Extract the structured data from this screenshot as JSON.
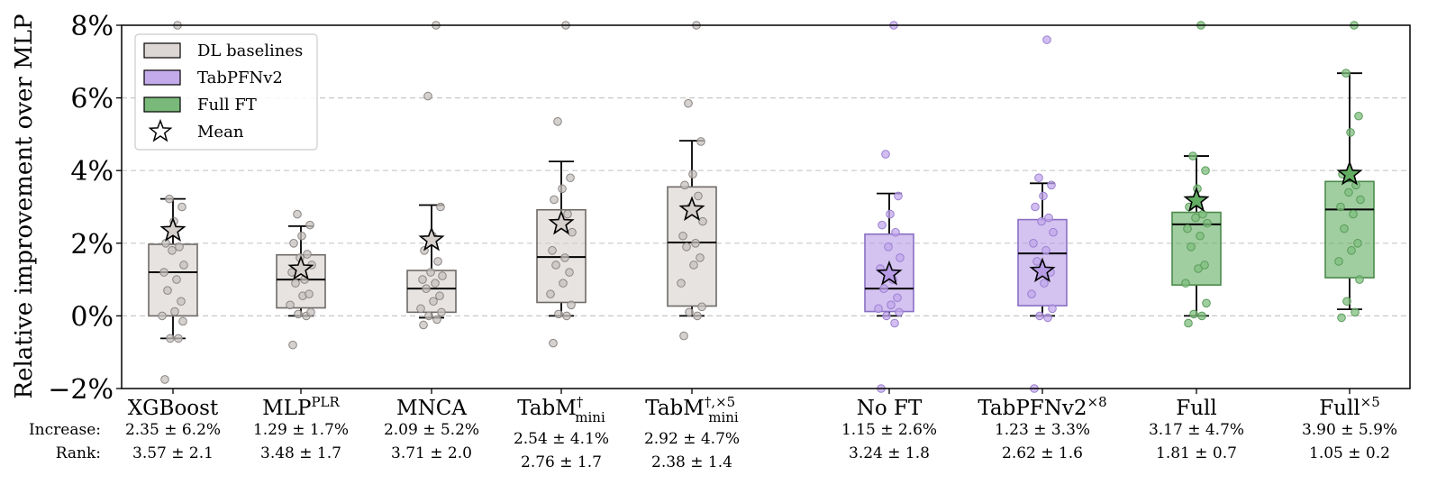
{
  "chart_data": {
    "type": "box",
    "ylabel": "Relative improvement over MLP",
    "ylim": [
      -2,
      8
    ],
    "yticks": [
      "−2%",
      "0%",
      "2%",
      "4%",
      "6%",
      "8%"
    ],
    "ytick_values": [
      -2,
      0,
      2,
      4,
      6,
      8
    ],
    "grid": "horizontal dashed",
    "legend_position": "top-left",
    "legend": [
      {
        "label": "DL baselines",
        "color": "#d6d0cd"
      },
      {
        "label": "TabPFNv2",
        "color": "#b89be6"
      },
      {
        "label": "Full FT",
        "color": "#62ad62"
      },
      {
        "label": "Mean",
        "marker": "star"
      }
    ],
    "row_labels": {
      "increase": "Increase:",
      "rank": "Rank:"
    },
    "groups": [
      {
        "name": "XGBoost",
        "sup": "",
        "sub": "",
        "color_group": "DL baselines",
        "q1": 0.0,
        "median": 1.2,
        "q3": 1.97,
        "whisker_low": -0.62,
        "whisker_high": 3.22,
        "mean": 2.35,
        "points": [
          -1.75,
          -0.62,
          -0.62,
          -0.15,
          0.0,
          0.12,
          0.4,
          0.7,
          1.0,
          1.2,
          1.4,
          1.8,
          1.9,
          2.0,
          2.6,
          3.0,
          3.22,
          8.0
        ],
        "increase": "2.35 ± 6.2%",
        "rank": "3.57 ± 2.1"
      },
      {
        "name": "MLP",
        "sup": "PLR",
        "sub": "",
        "color_group": "DL baselines",
        "q1": 0.22,
        "median": 1.0,
        "q3": 1.68,
        "whisker_low": 0.0,
        "whisker_high": 2.47,
        "mean": 1.29,
        "points": [
          -0.8,
          0.0,
          0.05,
          0.1,
          0.3,
          0.55,
          0.6,
          0.9,
          1.0,
          1.2,
          1.4,
          1.6,
          1.7,
          2.0,
          2.2,
          2.5,
          2.8
        ],
        "increase": "1.29 ± 1.7%",
        "rank": "3.48 ± 1.7"
      },
      {
        "name": "MNCA",
        "sup": "",
        "sub": "",
        "color_group": "DL baselines",
        "q1": 0.1,
        "median": 0.75,
        "q3": 1.25,
        "whisker_low": -0.05,
        "whisker_high": 3.05,
        "mean": 2.09,
        "points": [
          -0.25,
          -0.1,
          0.0,
          0.1,
          0.2,
          0.4,
          0.55,
          0.75,
          0.9,
          1.0,
          1.1,
          1.2,
          1.5,
          1.8,
          2.2,
          3.0,
          6.05,
          8.0
        ],
        "increase": "2.09 ± 5.2%",
        "rank": "3.71 ± 2.0"
      },
      {
        "name": "TabM",
        "sup": "†",
        "sub": "mini",
        "color_group": "DL baselines",
        "q1": 0.37,
        "median": 1.62,
        "q3": 2.92,
        "whisker_low": 0.0,
        "whisker_high": 4.25,
        "mean": 2.54,
        "points": [
          -0.75,
          0.0,
          0.05,
          0.3,
          0.6,
          0.9,
          1.2,
          1.4,
          1.6,
          1.8,
          2.3,
          2.5,
          2.8,
          3.2,
          3.5,
          3.8,
          5.35,
          8.0
        ],
        "increase": "2.54 ± 4.1%",
        "rank": "2.76 ± 1.7"
      },
      {
        "name": "TabM",
        "sup": "†,×5",
        "sub": "mini",
        "color_group": "DL baselines",
        "q1": 0.27,
        "median": 2.02,
        "q3": 3.55,
        "whisker_low": 0.0,
        "whisker_high": 4.82,
        "mean": 2.92,
        "points": [
          -0.55,
          0.0,
          0.1,
          0.25,
          0.9,
          1.4,
          1.6,
          1.9,
          2.0,
          2.2,
          2.6,
          3.0,
          3.3,
          3.6,
          3.9,
          4.8,
          5.85,
          8.0
        ],
        "increase": "2.92 ± 4.7%",
        "rank": "2.38 ± 1.4"
      },
      {
        "name": "No FT",
        "sup": "",
        "sub": "",
        "color_group": "TabPFNv2",
        "q1": 0.12,
        "median": 0.75,
        "q3": 2.25,
        "whisker_low": 0.0,
        "whisker_high": 3.37,
        "mean": 1.15,
        "points": [
          -2.0,
          -0.2,
          0.0,
          0.1,
          0.2,
          0.3,
          0.5,
          0.75,
          1.0,
          1.3,
          1.6,
          1.9,
          2.3,
          2.5,
          2.8,
          3.3,
          4.45,
          8.0
        ],
        "increase": "1.15 ± 2.6%",
        "rank": "3.24 ± 1.8"
      },
      {
        "name": "TabPFNv2",
        "sup": "×8",
        "sub": "",
        "color_group": "TabPFNv2",
        "q1": 0.28,
        "median": 1.72,
        "q3": 2.65,
        "whisker_low": 0.0,
        "whisker_high": 3.65,
        "mean": 1.23,
        "points": [
          -2.0,
          -0.05,
          0.0,
          0.2,
          0.6,
          0.9,
          1.2,
          1.5,
          1.8,
          2.0,
          2.3,
          2.6,
          2.7,
          3.0,
          3.3,
          3.6,
          3.8,
          7.6
        ],
        "increase": "1.23 ± 3.3%",
        "rank": "2.62 ± 1.6"
      },
      {
        "name": "Full",
        "sup": "",
        "sub": "",
        "color_group": "Full FT",
        "q1": 0.85,
        "median": 2.52,
        "q3": 2.85,
        "whisker_low": 0.0,
        "whisker_high": 4.4,
        "mean": 3.17,
        "points": [
          -0.2,
          0.0,
          0.05,
          0.35,
          0.9,
          1.3,
          1.4,
          1.9,
          2.2,
          2.4,
          2.55,
          2.7,
          2.8,
          3.0,
          3.5,
          4.0,
          4.4,
          8.0
        ],
        "increase": "3.17 ± 4.7%",
        "rank": "1.81 ± 0.7"
      },
      {
        "name": "Full",
        "sup": "×5",
        "sub": "",
        "color_group": "Full FT",
        "q1": 1.05,
        "median": 2.93,
        "q3": 3.7,
        "whisker_low": 0.18,
        "whisker_high": 6.68,
        "mean": 3.9,
        "points": [
          -0.05,
          0.1,
          0.4,
          1.0,
          1.5,
          1.8,
          2.0,
          2.4,
          2.8,
          3.0,
          3.2,
          3.4,
          3.6,
          3.9,
          5.05,
          5.5,
          6.68,
          8.0
        ],
        "increase": "3.90 ± 5.9%",
        "rank": "1.05 ± 0.2"
      }
    ]
  }
}
